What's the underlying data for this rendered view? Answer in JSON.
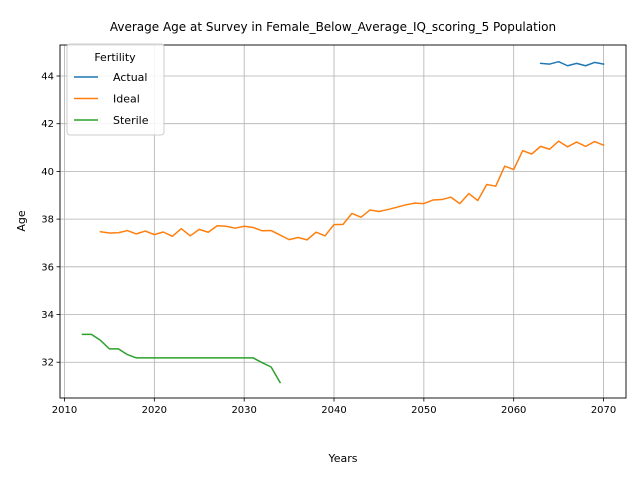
{
  "chart_data": {
    "type": "line",
    "title": "Average Age at Survey in Female_Below_Average_IQ_scoring_5 Population",
    "xlabel": "Years",
    "ylabel": "Age",
    "xlim": [
      2009.5,
      2072.5
    ],
    "ylim": [
      30.5,
      45.3
    ],
    "x_ticks": [
      2010,
      2020,
      2030,
      2040,
      2050,
      2060,
      2070
    ],
    "y_ticks": [
      32,
      34,
      36,
      38,
      40,
      42,
      44
    ],
    "grid": true,
    "legend": {
      "title": "Fertility",
      "placement": "top-left"
    },
    "series": [
      {
        "name": "Actual",
        "color": "#1f77b4",
        "x": [
          2063,
          2064,
          2065,
          2066,
          2067,
          2068,
          2069,
          2070
        ],
        "y": [
          44.53,
          44.5,
          44.6,
          44.43,
          44.53,
          44.43,
          44.57,
          44.5
        ]
      },
      {
        "name": "Ideal",
        "color": "#ff7f0e",
        "x": [
          2014,
          2015,
          2016,
          2017,
          2018,
          2019,
          2020,
          2021,
          2022,
          2023,
          2024,
          2025,
          2026,
          2027,
          2028,
          2029,
          2030,
          2031,
          2032,
          2033,
          2034,
          2035,
          2036,
          2037,
          2038,
          2039,
          2040,
          2041,
          2042,
          2043,
          2044,
          2045,
          2046,
          2047,
          2048,
          2049,
          2050,
          2051,
          2052,
          2053,
          2054,
          2055,
          2056,
          2057,
          2058,
          2059,
          2060,
          2061,
          2062,
          2063,
          2064,
          2065,
          2066,
          2067,
          2068,
          2069,
          2070
        ],
        "y": [
          37.47,
          37.42,
          37.43,
          37.52,
          37.38,
          37.5,
          37.35,
          37.46,
          37.28,
          37.6,
          37.3,
          37.57,
          37.45,
          37.72,
          37.7,
          37.62,
          37.7,
          37.65,
          37.51,
          37.52,
          37.33,
          37.14,
          37.23,
          37.13,
          37.45,
          37.3,
          37.77,
          37.78,
          38.24,
          38.08,
          38.38,
          38.32,
          38.4,
          38.5,
          38.6,
          38.67,
          38.65,
          38.8,
          38.82,
          38.92,
          38.65,
          39.07,
          38.78,
          39.45,
          39.38,
          40.22,
          40.08,
          40.87,
          40.73,
          41.05,
          40.93,
          41.27,
          41.03,
          41.23,
          41.05,
          41.25,
          41.1
        ]
      },
      {
        "name": "Sterile",
        "color": "#2ca02c",
        "x": [
          2012,
          2013,
          2014,
          2015,
          2016,
          2017,
          2018,
          2019,
          2020,
          2021,
          2022,
          2023,
          2024,
          2025,
          2026,
          2027,
          2028,
          2029,
          2030,
          2031,
          2032,
          2033,
          2034
        ],
        "y": [
          33.17,
          33.17,
          32.92,
          32.56,
          32.56,
          32.32,
          32.18,
          32.18,
          32.18,
          32.18,
          32.18,
          32.18,
          32.18,
          32.18,
          32.18,
          32.18,
          32.18,
          32.18,
          32.18,
          32.18,
          31.98,
          31.8,
          31.15
        ]
      }
    ]
  }
}
